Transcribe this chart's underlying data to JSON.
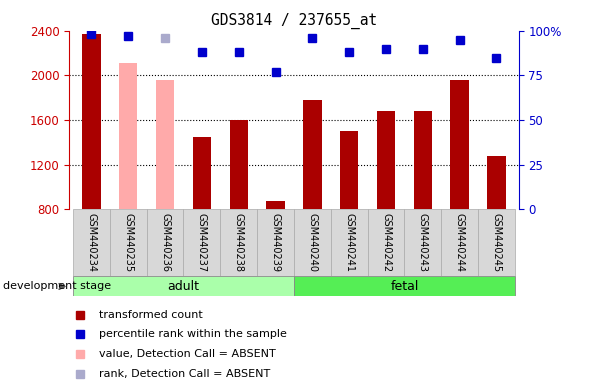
{
  "title": "GDS3814 / 237655_at",
  "samples": [
    "GSM440234",
    "GSM440235",
    "GSM440236",
    "GSM440237",
    "GSM440238",
    "GSM440239",
    "GSM440240",
    "GSM440241",
    "GSM440242",
    "GSM440243",
    "GSM440244",
    "GSM440245"
  ],
  "bar_values": [
    2370,
    2110,
    1960,
    1450,
    1600,
    870,
    1780,
    1500,
    1680,
    1680,
    1960,
    1280
  ],
  "bar_absent": [
    false,
    true,
    true,
    false,
    false,
    false,
    false,
    false,
    false,
    false,
    false,
    false
  ],
  "rank_values": [
    98,
    97,
    96,
    88,
    88,
    77,
    96,
    88,
    90,
    90,
    95,
    85
  ],
  "rank_absent": [
    false,
    false,
    true,
    false,
    false,
    false,
    false,
    false,
    false,
    false,
    false,
    false
  ],
  "ylim_left": [
    800,
    2400
  ],
  "ylim_right": [
    0,
    100
  ],
  "yticks_left": [
    800,
    1200,
    1600,
    2000,
    2400
  ],
  "yticks_right": [
    0,
    25,
    50,
    75,
    100
  ],
  "bar_color_present": "#aa0000",
  "bar_color_absent": "#ffaaaa",
  "rank_color_present": "#0000cc",
  "rank_color_absent": "#aaaacc",
  "adult_n": 6,
  "fetal_n": 6,
  "adult_color": "#aaffaa",
  "fetal_color": "#55ee55",
  "stage_label": "development stage",
  "legend_items": [
    {
      "label": "transformed count",
      "color": "#aa0000"
    },
    {
      "label": "percentile rank within the sample",
      "color": "#0000cc"
    },
    {
      "label": "value, Detection Call = ABSENT",
      "color": "#ffaaaa"
    },
    {
      "label": "rank, Detection Call = ABSENT",
      "color": "#aaaacc"
    }
  ],
  "tick_label_color_left": "#cc0000",
  "tick_label_color_right": "#0000cc",
  "background_color": "#ffffff",
  "bar_width": 0.5,
  "rank_marker_size": 6,
  "grid_yticks": [
    1200,
    1600,
    2000
  ]
}
